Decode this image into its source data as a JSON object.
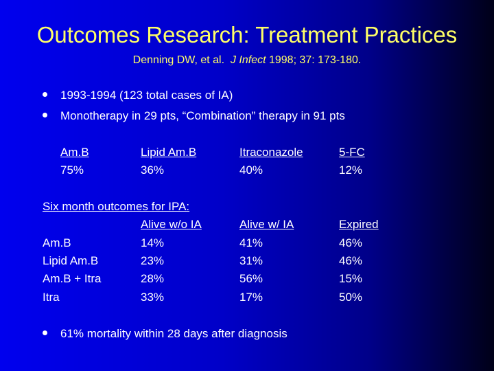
{
  "title": "Outcomes Research: Treatment Practices",
  "citation": {
    "authors": "Denning DW, et al.",
    "journal": "J Infect",
    "details": "1998; 37: 173-180."
  },
  "bullets": [
    "1993-1994  (123 total cases of IA)",
    "Monotherapy in 29 pts, “Combination” therapy in 91 pts"
  ],
  "usage_table": {
    "drugs": [
      "Am.B",
      "Lipid Am.B",
      "Itraconazole",
      "5-FC"
    ],
    "percents": [
      "75%",
      "36%",
      "40%",
      "12%"
    ]
  },
  "outcomes": {
    "heading": "Six month outcomes for IPA:",
    "columns": [
      "Alive w/o IA",
      "Alive w/ IA",
      "Expired"
    ],
    "rows": [
      {
        "label": "Am.B",
        "values": [
          "14%",
          "41%",
          "46%"
        ]
      },
      {
        "label": "Lipid Am.B",
        "values": [
          "23%",
          "31%",
          "46%"
        ]
      },
      {
        "label": "Am.B + Itra",
        "values": [
          "28%",
          "56%",
          "15%"
        ]
      },
      {
        "label": "Itra",
        "values": [
          "33%",
          "17%",
          "50%"
        ]
      }
    ]
  },
  "final_bullet": "61% mortality within 28 days after diagnosis"
}
